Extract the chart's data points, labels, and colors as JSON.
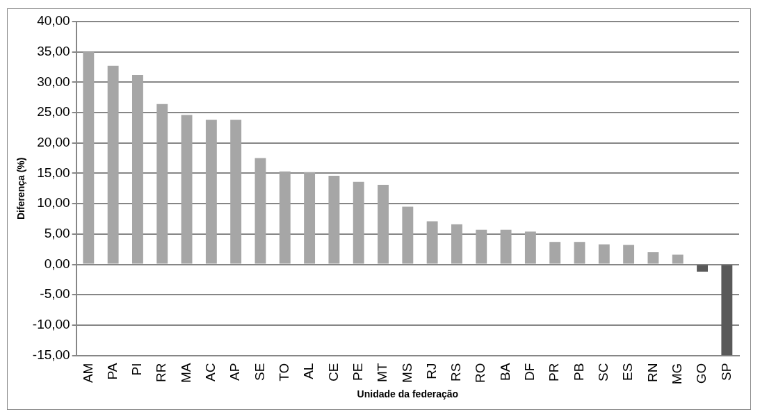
{
  "chart_data": {
    "type": "bar",
    "xlabel": "Unidade da federação",
    "ylabel": "Diferença (%)",
    "categories": [
      "AM",
      "PA",
      "PI",
      "RR",
      "MA",
      "AC",
      "AP",
      "SE",
      "TO",
      "AL",
      "CE",
      "PE",
      "MT",
      "MS",
      "RJ",
      "RS",
      "RO",
      "BA",
      "DF",
      "PR",
      "PB",
      "SC",
      "ES",
      "RN",
      "MG",
      "GO",
      "SP"
    ],
    "values": [
      35.0,
      32.7,
      31.2,
      26.4,
      24.6,
      23.8,
      23.8,
      17.5,
      15.3,
      15.2,
      14.6,
      13.6,
      13.1,
      9.5,
      7.1,
      6.6,
      5.7,
      5.7,
      5.4,
      3.7,
      3.7,
      3.3,
      3.2,
      2.0,
      1.6,
      -1.2,
      -15.0
    ],
    "colors": [
      "#a6a6a6",
      "#a6a6a6",
      "#a6a6a6",
      "#a6a6a6",
      "#a6a6a6",
      "#a6a6a6",
      "#a6a6a6",
      "#a6a6a6",
      "#a6a6a6",
      "#a6a6a6",
      "#a6a6a6",
      "#a6a6a6",
      "#a6a6a6",
      "#a6a6a6",
      "#a6a6a6",
      "#a6a6a6",
      "#a6a6a6",
      "#a6a6a6",
      "#a6a6a6",
      "#a6a6a6",
      "#a6a6a6",
      "#a6a6a6",
      "#a6a6a6",
      "#a6a6a6",
      "#a6a6a6",
      "#595959",
      "#595959"
    ],
    "ylim": [
      -15,
      40
    ],
    "yticks": [
      {
        "value": -15,
        "label": "-15,00"
      },
      {
        "value": -10,
        "label": "-10,00"
      },
      {
        "value": -5,
        "label": "-5,00"
      },
      {
        "value": 0,
        "label": "0,00"
      },
      {
        "value": 5,
        "label": "5,00"
      },
      {
        "value": 10,
        "label": "10,00"
      },
      {
        "value": 15,
        "label": "15,00"
      },
      {
        "value": 20,
        "label": "20,00"
      },
      {
        "value": 25,
        "label": "25,00"
      },
      {
        "value": 30,
        "label": "30,00"
      },
      {
        "value": 35,
        "label": "35,00"
      },
      {
        "value": 40,
        "label": "40,00"
      }
    ],
    "grid": "y",
    "legend": false
  }
}
